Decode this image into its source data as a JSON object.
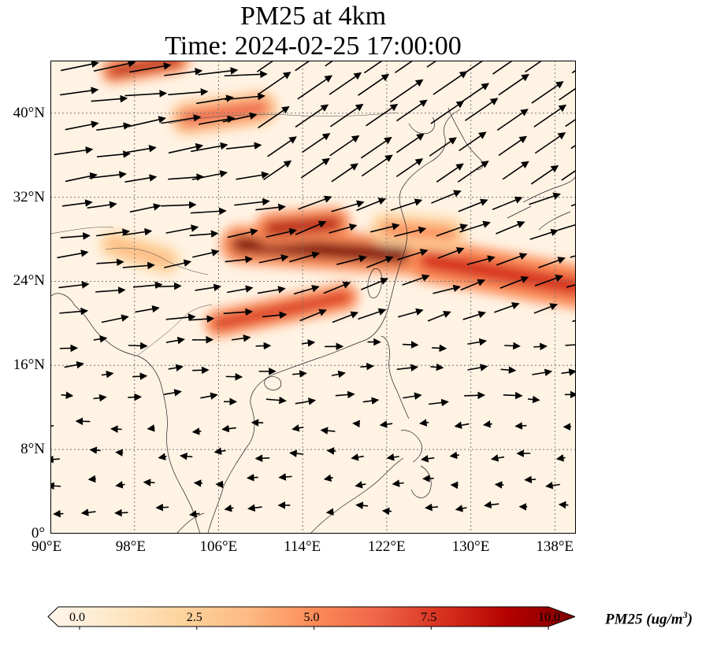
{
  "title": {
    "line1": "PM25 at 4km",
    "line2": "Time: 2024-02-25 17:00:00"
  },
  "map": {
    "lon_range": [
      90,
      140
    ],
    "lat_range": [
      0,
      45
    ],
    "x_ticks": [
      "90°E",
      "98°E",
      "106°E",
      "114°E",
      "122°E",
      "130°E",
      "138°E"
    ],
    "x_tick_values": [
      90,
      98,
      106,
      114,
      122,
      130,
      138
    ],
    "y_ticks": [
      "0°",
      "8°N",
      "16°N",
      "24°N",
      "32°N",
      "40°N"
    ],
    "y_tick_values": [
      0,
      8,
      16,
      24,
      32,
      40
    ],
    "gridlines": true,
    "background_color": "#fff3e4",
    "plumes": [
      {
        "lon": [
          108,
          128
        ],
        "lat": [
          27.5,
          26.2
        ],
        "width_deg": 1.4,
        "intensity": 10
      },
      {
        "lon": [
          111,
          117
        ],
        "lat": [
          29,
          29.5
        ],
        "width_deg": 1.2,
        "intensity": 9
      },
      {
        "lon": [
          126,
          140
        ],
        "lat": [
          26,
          23.5
        ],
        "width_deg": 1.6,
        "intensity": 8
      },
      {
        "lon": [
          106,
          118
        ],
        "lat": [
          20,
          22.5
        ],
        "width_deg": 1.0,
        "intensity": 8
      },
      {
        "lon": [
          96,
          102
        ],
        "lat": [
          44,
          45
        ],
        "width_deg": 0.9,
        "intensity": 9
      },
      {
        "lon": [
          103,
          110
        ],
        "lat": [
          39.5,
          40.5
        ],
        "width_deg": 1.2,
        "intensity": 6
      },
      {
        "lon": [
          96,
          101
        ],
        "lat": [
          27.5,
          26
        ],
        "width_deg": 1.0,
        "intensity": 4
      },
      {
        "lon": [
          122,
          128
        ],
        "lat": [
          29,
          28.5
        ],
        "width_deg": 1.2,
        "intensity": 5
      }
    ]
  },
  "colorbar": {
    "ticks": [
      "0.0",
      "2.5",
      "5.0",
      "7.5",
      "10.0"
    ],
    "tick_values": [
      0,
      2.5,
      5,
      7.5,
      10
    ],
    "label_text": "PM25 (ug/m",
    "label_sup": "3",
    "label_close": ")",
    "colormap": "OrRd",
    "colors": [
      "#fff7ec",
      "#fee8c8",
      "#fdd49e",
      "#fdbb84",
      "#fc8d59",
      "#ef6548",
      "#d7301f",
      "#b30000",
      "#7f0000"
    ]
  }
}
